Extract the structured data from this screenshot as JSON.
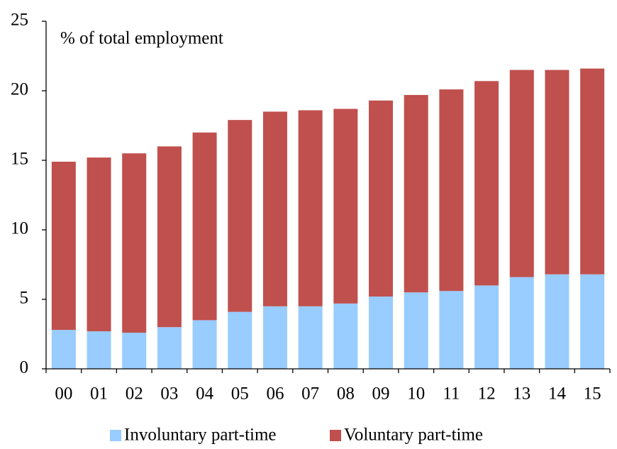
{
  "chart_data": {
    "type": "stacked_bar",
    "y_label": "% of total employment",
    "categories": [
      "00",
      "01",
      "02",
      "03",
      "04",
      "05",
      "06",
      "07",
      "08",
      "09",
      "10",
      "11",
      "12",
      "13",
      "14",
      "15"
    ],
    "series": [
      {
        "name": "Involuntary part-time",
        "color": "#99ccff",
        "values": [
          2.8,
          2.7,
          2.6,
          3.0,
          3.5,
          4.1,
          4.5,
          4.5,
          4.7,
          5.2,
          5.5,
          5.6,
          6.0,
          6.6,
          6.8,
          6.8
        ]
      },
      {
        "name": "Voluntary part-time",
        "color": "#c0504d",
        "values": [
          12.1,
          12.5,
          12.9,
          13.0,
          13.5,
          13.8,
          14.0,
          14.1,
          14.0,
          14.1,
          14.2,
          14.5,
          14.7,
          14.9,
          14.7,
          14.8
        ]
      }
    ],
    "ylim": [
      0,
      25
    ],
    "yticks": [
      0,
      5,
      10,
      15,
      20,
      25
    ],
    "grid": false,
    "legend": "bottom"
  }
}
